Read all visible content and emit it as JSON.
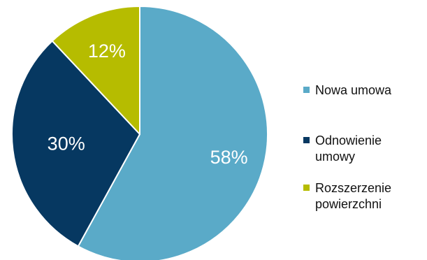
{
  "chart_data": {
    "type": "pie",
    "title": "",
    "categories": [
      "Nowa umowa",
      "Odnowienie\numowy",
      "Rozszerzenie\npowierzchni"
    ],
    "values": [
      58,
      30,
      12
    ],
    "value_labels": [
      "58%",
      "30%",
      "12%"
    ],
    "colors": [
      "#5aaac8",
      "#063861",
      "#b6bc00"
    ],
    "legend_position": "right",
    "legend": [
      {
        "label": "Nowa umowa",
        "color": "#5aaac8"
      },
      {
        "label": "Odnowienie\numowy",
        "color": "#063861"
      },
      {
        "label": "Rozszerzenie\npowierzchni",
        "color": "#b6bc00"
      }
    ]
  }
}
